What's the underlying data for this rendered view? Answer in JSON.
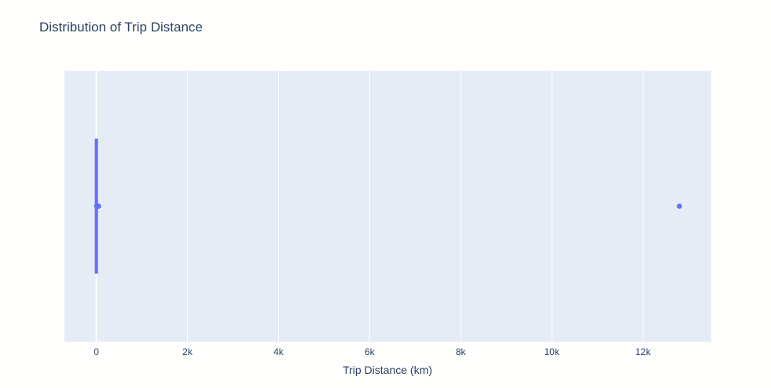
{
  "chart_data": {
    "type": "box",
    "title": "Distribution of Trip Distance",
    "xlabel": "Trip Distance (km)",
    "ylabel": "",
    "orientation": "horizontal",
    "xlim": [
      -700,
      13500
    ],
    "xticks": [
      0,
      2000,
      4000,
      6000,
      8000,
      10000,
      12000
    ],
    "xtick_labels": [
      "0",
      "2k",
      "4k",
      "6k",
      "8k",
      "10k",
      "12k"
    ],
    "grid": true,
    "box": {
      "q1": 0.9,
      "median": 1.6,
      "q3": 3.0,
      "lower_fence": 0,
      "upper_fence": 6.1
    },
    "outliers": [
      8,
      12,
      18,
      25,
      35,
      48,
      12800
    ],
    "colors": {
      "box": "#636efa",
      "plot_bg": "#e5ecf6",
      "paper_bg": "#fffffd",
      "grid": "#ffffff",
      "text": "#2a3f5f"
    }
  }
}
